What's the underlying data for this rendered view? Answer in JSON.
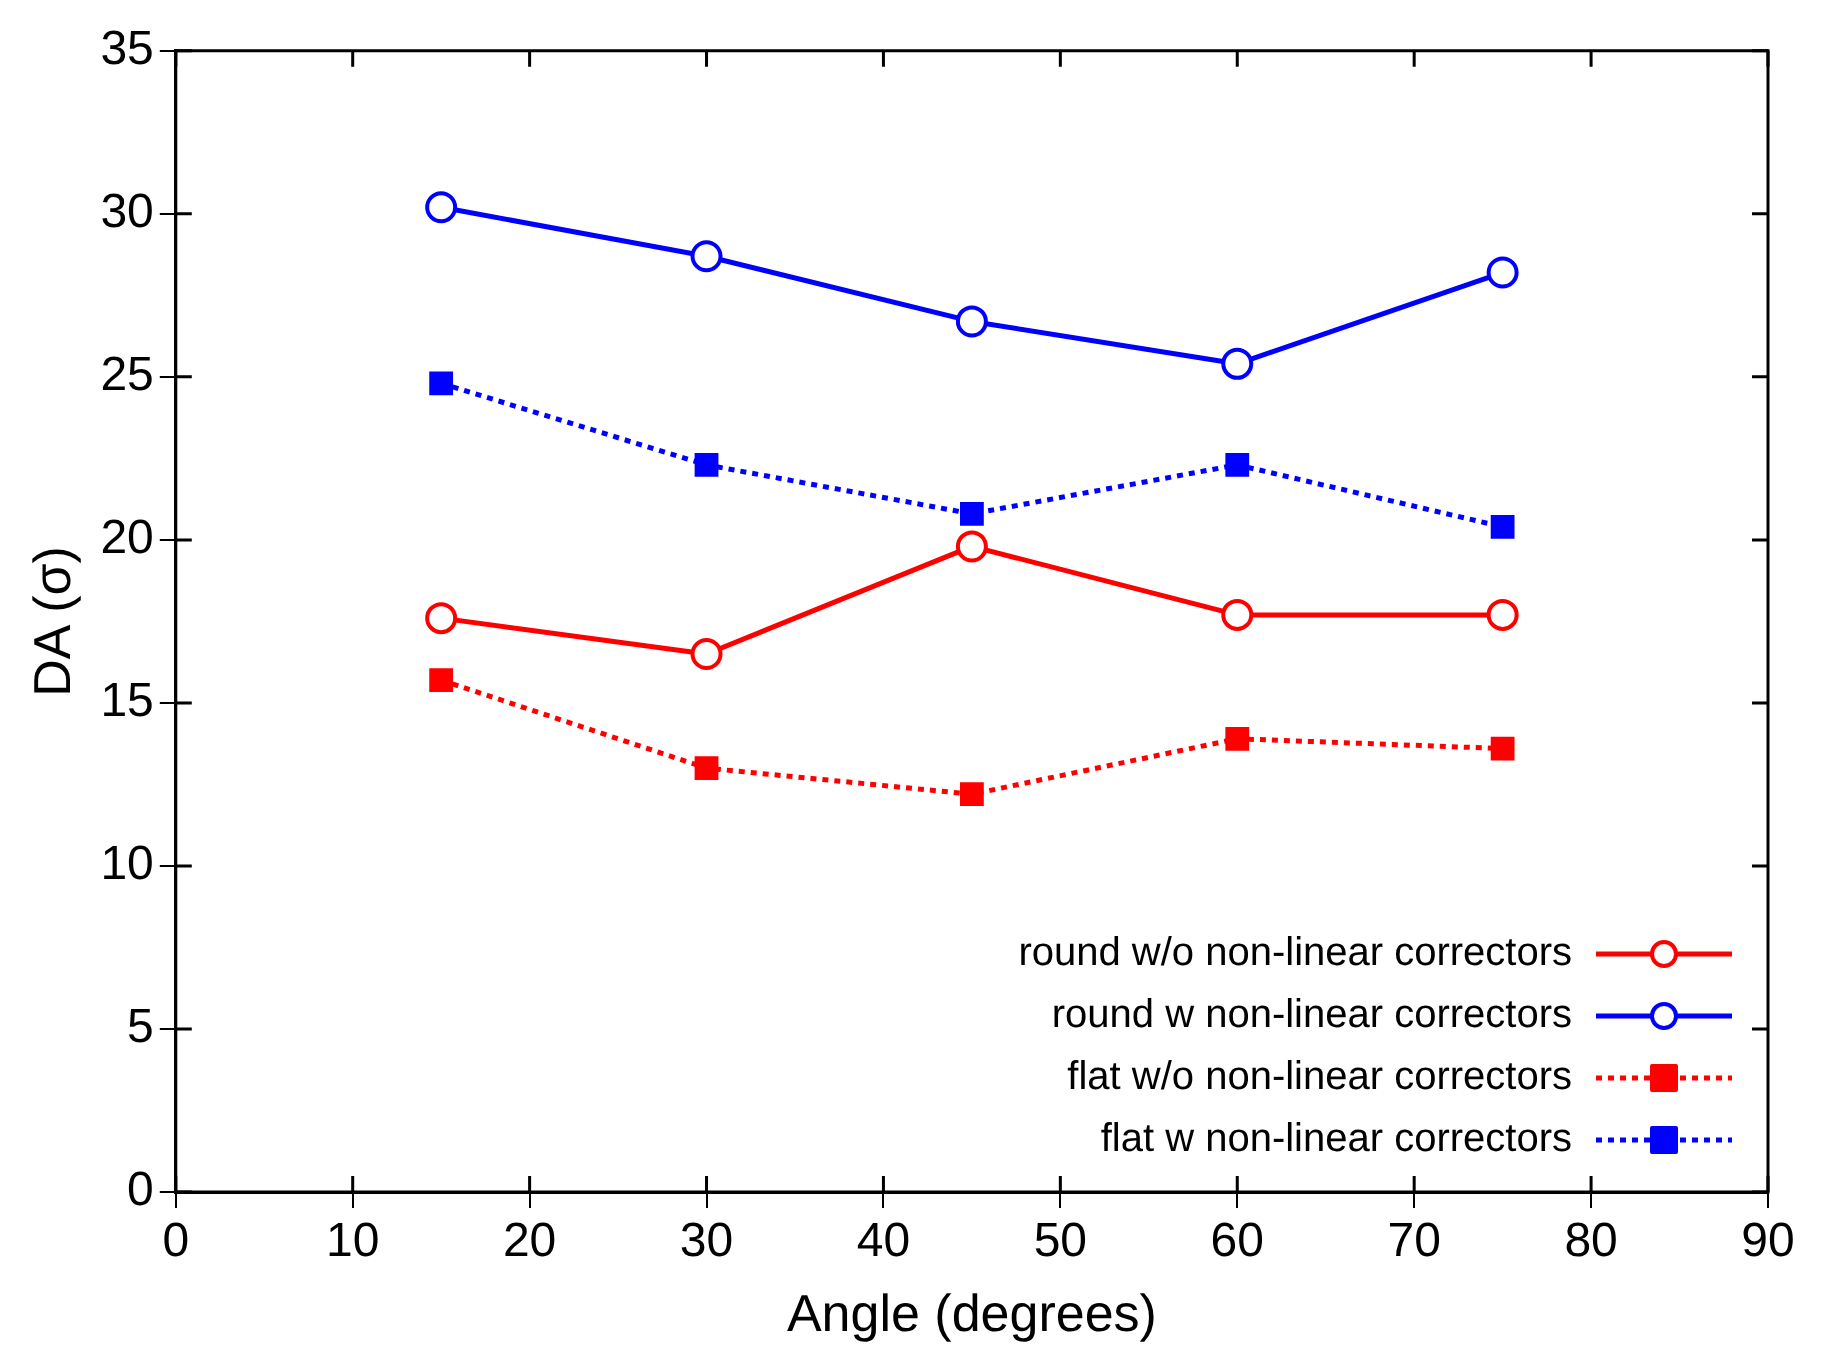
{
  "chart_data": {
    "type": "line",
    "xlabel": "Angle (degrees)",
    "ylabel": "DA (σ)",
    "x": [
      15,
      30,
      45,
      60,
      75
    ],
    "xlim": [
      0,
      90
    ],
    "xticks": [
      0,
      10,
      20,
      30,
      40,
      50,
      60,
      70,
      80,
      90
    ],
    "ylim": [
      0,
      35
    ],
    "yticks": [
      0,
      5,
      10,
      15,
      20,
      25,
      30,
      35
    ],
    "grid": false,
    "legend": "bottom right",
    "series": [
      {
        "name": "round w/o non-linear correctors",
        "color": "#ff0000",
        "marker": "circle",
        "line_style": "solid",
        "values": [
          17.6,
          16.5,
          19.8,
          17.7,
          17.7
        ]
      },
      {
        "name": "round w non-linear correctors",
        "color": "#0000ff",
        "marker": "circle",
        "line_style": "solid",
        "values": [
          30.2,
          28.7,
          26.7,
          25.4,
          28.2
        ]
      },
      {
        "name": "flat w/o non-linear correctors",
        "color": "#ff0000",
        "marker": "square",
        "line_style": "dotted",
        "values": [
          15.7,
          13.0,
          12.2,
          13.9,
          13.6
        ]
      },
      {
        "name": "flat w non-linear correctors",
        "color": "#0000ff",
        "marker": "square",
        "line_style": "dotted",
        "values": [
          24.8,
          22.3,
          20.8,
          22.3,
          20.4
        ]
      }
    ]
  }
}
